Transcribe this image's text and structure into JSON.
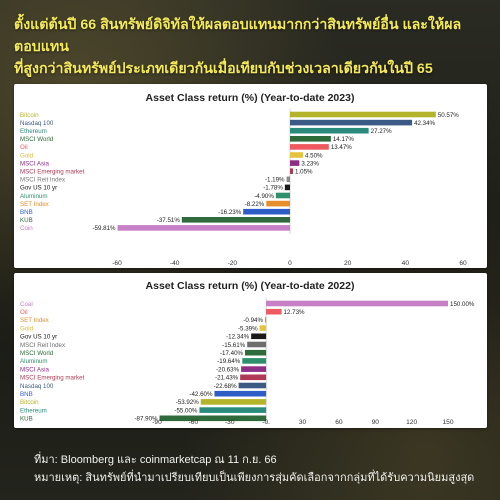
{
  "headline": {
    "line1": "ตั้งแต่ต้นปี 66 สินทรัพย์ดิจิทัลให้ผลตอบแทนมากกว่าสินทรัพย์อื่น และให้ผลตอบแทน",
    "line2": "ที่สูงกว่าสินทรัพย์ประเภทเดียวกันเมื่อเทียบกับช่วงเวลาเดียวกันในปี 65"
  },
  "footer": {
    "source": "ที่มา: Bloomberg และ coinmarketcap ณ 11 ก.ย. 66",
    "note": "หมายเหตุ: สินทรัพย์ที่นำมาเปรียบเทียบเป็นเพียงการสุ่มคัดเลือกจากกลุ่มที่ได้รับความนิยมสูงสุด"
  },
  "chart_data": [
    {
      "type": "bar",
      "orientation": "horizontal",
      "title": "Asset Class return (%) (Year-to-date 2023)",
      "xlim": [
        -60,
        60
      ],
      "xticks": [
        -60,
        -40,
        -20,
        0,
        20,
        40,
        60
      ],
      "xtick_labels": [
        "-60",
        "-40",
        "-20",
        "0",
        "20",
        "40",
        "60"
      ],
      "grid": false,
      "categories": [
        "Bitcoin",
        "Nasdaq 100",
        "Ethereum",
        "MSCI World",
        "Oil",
        "Gold",
        "MSCI Asia",
        "MSCI Emerging market",
        "MSCI Reit Index",
        "Gov US 10 yr",
        "Aluminum",
        "SET Index",
        "BNB",
        "KUB",
        "Coin"
      ],
      "values": [
        50.57,
        42.34,
        27.27,
        14.17,
        13.47,
        4.5,
        3.23,
        1.05,
        -1.19,
        -1.78,
        -4.9,
        -8.22,
        -16.23,
        -37.51,
        -59.81
      ],
      "value_labels": [
        "50.57%",
        "42.34%",
        "27.27%",
        "14.17%",
        "13.47%",
        "4.50%",
        "3.23%",
        "1.05%",
        "-1.19%",
        "-1.78%",
        "-4.90%",
        "-8.22%",
        "-16.23%",
        "-37.51%",
        "-59.81%"
      ],
      "colors": [
        "#b3b42a",
        "#3c5a86",
        "#2a8a7c",
        "#2e6b3a",
        "#ee5a5f",
        "#e4c43e",
        "#8e2f86",
        "#b03a56",
        "#8a8a8a",
        "#1a1a1a",
        "#2e8f6c",
        "#e58e2a",
        "#2f5dc8",
        "#2f6a3c",
        "#c77fc6"
      ],
      "label_colors": [
        "#b3b42a",
        "#3c5a86",
        "#2a8a7c",
        "#2e6b3a",
        "#ee5a5f",
        "#d9b83a",
        "#8e2f86",
        "#b03a56",
        "#7a7a7a",
        "#1a1a1a",
        "#2e8f6c",
        "#e58e2a",
        "#2f5dc8",
        "#2f6a3c",
        "#c77fc6"
      ]
    },
    {
      "type": "bar",
      "orientation": "horizontal",
      "title": "Asset Class return (%) (Year-to-date 2022)",
      "xlim": [
        -90,
        150
      ],
      "xticks": [
        -90,
        -60,
        -30,
        0,
        30,
        60,
        90,
        120,
        150
      ],
      "xtick_labels": [
        "-90",
        "-60",
        "-30",
        "-0.",
        "30",
        "60",
        "90",
        "120",
        "150"
      ],
      "grid": false,
      "categories": [
        "Coal",
        "Oil",
        "SET Index",
        "Gold",
        "Gov US 10 yr",
        "MSCI Reit Index",
        "MSCI World",
        "Aluminum",
        "MSCI Asia",
        "MSCI Emerging market",
        "Nasdaq 100",
        "BNB",
        "Bitcoin",
        "Ethereum",
        "KUB"
      ],
      "values": [
        150.0,
        12.73,
        -0.94,
        -5.39,
        -12.34,
        -15.61,
        -17.4,
        -19.64,
        -20.63,
        -21.43,
        -22.68,
        -42.6,
        -53.92,
        -55.0,
        -87.9
      ],
      "value_labels": [
        "150.00%",
        "12.73%",
        "-0.94%",
        "-5.39%",
        "-12.34%",
        "-15.61%",
        "-17.40%",
        "-19.64%",
        "-20.63%",
        "-21.43%",
        "-22.68%",
        "-42.60%",
        "-53.92%",
        "-55.00%",
        "-87.90%"
      ],
      "colors": [
        "#c77fc6",
        "#ee5a5f",
        "#e58e2a",
        "#e4c43e",
        "#1a1a1a",
        "#6e6e6e",
        "#2e6b3a",
        "#2e8f6c",
        "#8e2f86",
        "#b03a56",
        "#3c5a86",
        "#2f5dc8",
        "#b3b42a",
        "#2a8a7c",
        "#2f6a3c"
      ],
      "label_colors": [
        "#c77fc6",
        "#ee5a5f",
        "#e58e2a",
        "#d9b83a",
        "#1a1a1a",
        "#6e6e6e",
        "#2e6b3a",
        "#2e8f6c",
        "#8e2f86",
        "#b03a56",
        "#3c5a86",
        "#2f5dc8",
        "#b3b42a",
        "#2a8a7c",
        "#2f6a3c"
      ]
    }
  ]
}
